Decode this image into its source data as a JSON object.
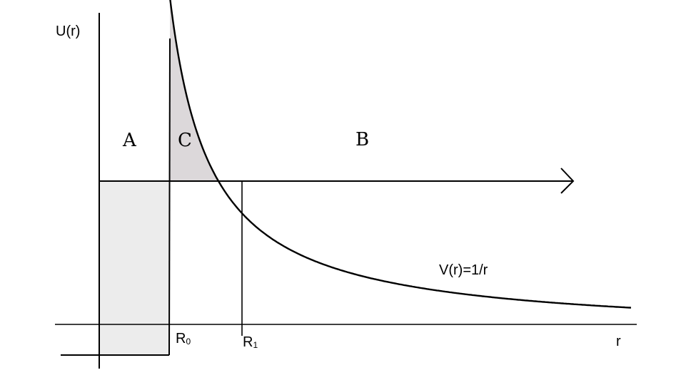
{
  "labels": {
    "y_axis": "U(r)",
    "x_axis": "r",
    "region_a": "A",
    "region_b": "B",
    "region_c": "C",
    "r0_main": "R",
    "r0_sub": "0",
    "r1_main": "R",
    "r1_sub": "1",
    "curve": "V(r)=1/r"
  },
  "colors": {
    "well_fill": "#ececec",
    "barrier_fill": "#dcd8da",
    "line": "#000000"
  }
}
